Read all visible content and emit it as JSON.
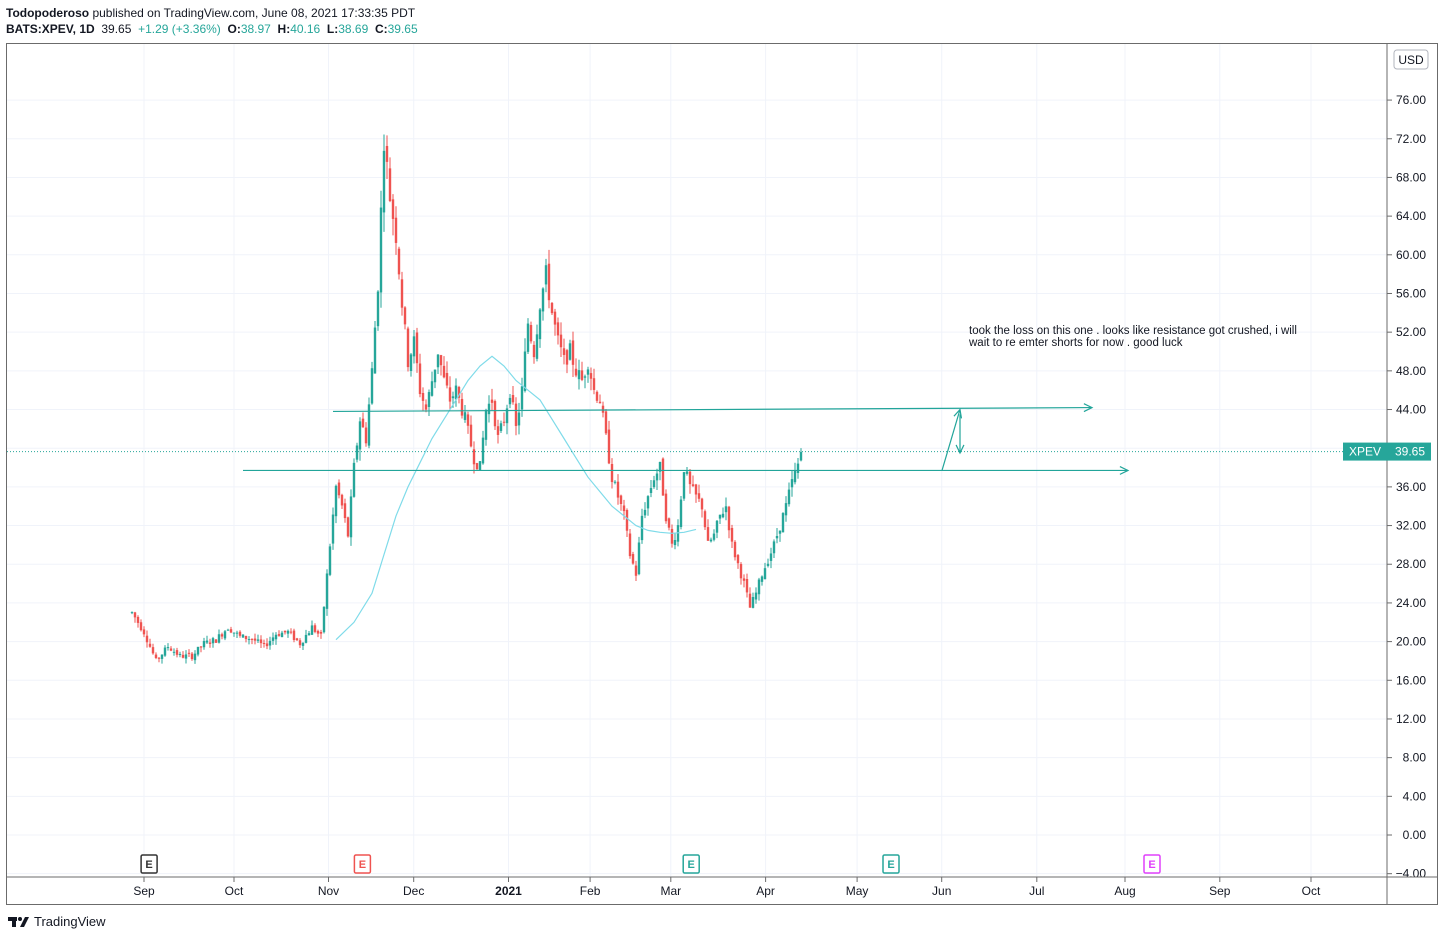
{
  "header": {
    "author": "Todopoderoso",
    "published_text": "published on TradingView.com, June 08, 2021 17:33:35 PDT",
    "symbol": "BATS:XPEV, 1D",
    "last": "39.65",
    "change": "+1.29 (+3.36%)",
    "o_label": "O:",
    "o_value": "38.97",
    "h_label": "H:",
    "h_value": "40.16",
    "l_label": "L:",
    "l_value": "38.69",
    "c_label": "C:",
    "c_value": "39.65"
  },
  "currency": "USD",
  "price_label": {
    "symbol": "XPEV",
    "value": "39.65"
  },
  "annotation": {
    "line1": "took the loss on this one . looks like resistance got crushed, i will",
    "line2": "wait to re emter shorts for now . good luck"
  },
  "brand": {
    "name": "TradingView"
  },
  "colors": {
    "up": "#26a69a",
    "down": "#ef5350",
    "ma": "#7fdbe9",
    "line": "#22a59a",
    "earnings_past": "#333333",
    "earnings_red": "#ef5350",
    "earnings_teal": "#26a69a",
    "earnings_future": "#e040fb"
  },
  "chart_data": {
    "type": "candlestick",
    "ylim": [
      -4,
      76
    ],
    "y_ticks": [
      "76.00",
      "72.00",
      "68.00",
      "64.00",
      "60.00",
      "56.00",
      "52.00",
      "48.00",
      "44.00",
      "40.00",
      "36.00",
      "32.00",
      "28.00",
      "24.00",
      "20.00",
      "16.00",
      "12.00",
      "8.00",
      "4.00",
      "0.00",
      "−4.00"
    ],
    "x_ticks": [
      {
        "label": "Sep",
        "t": 0.0,
        "bold": false
      },
      {
        "label": "Oct",
        "t": 30.0,
        "bold": false
      },
      {
        "label": "Nov",
        "t": 61.5,
        "bold": false
      },
      {
        "label": "Dec",
        "t": 89.9,
        "bold": false
      },
      {
        "label": "2021",
        "t": 121.5,
        "bold": true
      },
      {
        "label": "Feb",
        "t": 148.7,
        "bold": false
      },
      {
        "label": "Mar",
        "t": 175.6,
        "bold": false
      },
      {
        "label": "Apr",
        "t": 207.2,
        "bold": false
      },
      {
        "label": "May",
        "t": 237.7,
        "bold": false
      },
      {
        "label": "Jun",
        "t": 265.9,
        "bold": false
      },
      {
        "label": "Jul",
        "t": 297.6,
        "bold": false
      },
      {
        "label": "Aug",
        "t": 327.0,
        "bold": false
      },
      {
        "label": "Sep",
        "t": 358.6,
        "bold": false
      },
      {
        "label": "Oct",
        "t": 389.0,
        "bold": false
      }
    ],
    "earnings": [
      {
        "letter": "E",
        "t": 1.7,
        "kind": "past"
      },
      {
        "letter": "E",
        "t": 72.8,
        "kind": "red"
      },
      {
        "letter": "E",
        "t": 182.4,
        "kind": "teal"
      },
      {
        "letter": "E",
        "t": 249.0,
        "kind": "teal"
      },
      {
        "letter": "E",
        "t": 336.0,
        "kind": "future"
      }
    ],
    "candle_path": [
      {
        "t": -4,
        "p": 23
      },
      {
        "t": 0,
        "p": 21
      },
      {
        "t": 4,
        "p": 18
      },
      {
        "t": 8,
        "p": 19.5
      },
      {
        "t": 12,
        "p": 18.5
      },
      {
        "t": 16,
        "p": 18.5
      },
      {
        "t": 20,
        "p": 19.8
      },
      {
        "t": 24,
        "p": 20.2
      },
      {
        "t": 28,
        "p": 21.5
      },
      {
        "t": 32,
        "p": 20.5
      },
      {
        "t": 36,
        "p": 20.3
      },
      {
        "t": 40,
        "p": 19.5
      },
      {
        "t": 44,
        "p": 20.8
      },
      {
        "t": 48,
        "p": 21
      },
      {
        "t": 52,
        "p": 19.8
      },
      {
        "t": 56,
        "p": 21.5
      },
      {
        "t": 59,
        "p": 20.5
      },
      {
        "t": 62,
        "p": 30
      },
      {
        "t": 64,
        "p": 36
      },
      {
        "t": 66,
        "p": 34
      },
      {
        "t": 68,
        "p": 31
      },
      {
        "t": 70,
        "p": 38
      },
      {
        "t": 72,
        "p": 43
      },
      {
        "t": 74,
        "p": 41
      },
      {
        "t": 76,
        "p": 48
      },
      {
        "t": 78,
        "p": 57
      },
      {
        "t": 80,
        "p": 72
      },
      {
        "t": 82,
        "p": 66
      },
      {
        "t": 84,
        "p": 62
      },
      {
        "t": 86,
        "p": 55
      },
      {
        "t": 88,
        "p": 49
      },
      {
        "t": 90,
        "p": 51
      },
      {
        "t": 92,
        "p": 46
      },
      {
        "t": 94,
        "p": 44
      },
      {
        "t": 96,
        "p": 47
      },
      {
        "t": 98,
        "p": 50
      },
      {
        "t": 100,
        "p": 47
      },
      {
        "t": 102,
        "p": 45
      },
      {
        "t": 104,
        "p": 46
      },
      {
        "t": 107,
        "p": 43
      },
      {
        "t": 110,
        "p": 39
      },
      {
        "t": 112,
        "p": 38
      },
      {
        "t": 114,
        "p": 44
      },
      {
        "t": 116,
        "p": 45
      },
      {
        "t": 118,
        "p": 41
      },
      {
        "t": 120,
        "p": 43
      },
      {
        "t": 122,
        "p": 46
      },
      {
        "t": 124,
        "p": 42
      },
      {
        "t": 126,
        "p": 46
      },
      {
        "t": 128,
        "p": 53
      },
      {
        "t": 130,
        "p": 50
      },
      {
        "t": 132,
        "p": 55
      },
      {
        "t": 134,
        "p": 58
      },
      {
        "t": 136,
        "p": 54
      },
      {
        "t": 138,
        "p": 51
      },
      {
        "t": 140,
        "p": 49
      },
      {
        "t": 142,
        "p": 50
      },
      {
        "t": 144,
        "p": 48
      },
      {
        "t": 146,
        "p": 47
      },
      {
        "t": 148,
        "p": 49
      },
      {
        "t": 150,
        "p": 46
      },
      {
        "t": 152,
        "p": 45
      },
      {
        "t": 154,
        "p": 41
      },
      {
        "t": 156,
        "p": 37
      },
      {
        "t": 158,
        "p": 35
      },
      {
        "t": 160,
        "p": 33
      },
      {
        "t": 162,
        "p": 29
      },
      {
        "t": 164,
        "p": 27
      },
      {
        "t": 166,
        "p": 33
      },
      {
        "t": 168,
        "p": 35
      },
      {
        "t": 170,
        "p": 37
      },
      {
        "t": 172,
        "p": 38
      },
      {
        "t": 174,
        "p": 33
      },
      {
        "t": 176,
        "p": 30
      },
      {
        "t": 178,
        "p": 32
      },
      {
        "t": 180,
        "p": 38
      },
      {
        "t": 182,
        "p": 36
      },
      {
        "t": 184,
        "p": 35
      },
      {
        "t": 186,
        "p": 34
      },
      {
        "t": 188,
        "p": 30
      },
      {
        "t": 190,
        "p": 31
      },
      {
        "t": 192,
        "p": 33
      },
      {
        "t": 194,
        "p": 34
      },
      {
        "t": 196,
        "p": 30
      },
      {
        "t": 198,
        "p": 28
      },
      {
        "t": 200,
        "p": 26
      },
      {
        "t": 202,
        "p": 23.5
      },
      {
        "t": 204,
        "p": 25
      },
      {
        "t": 206,
        "p": 27
      },
      {
        "t": 208,
        "p": 28.5
      },
      {
        "t": 210,
        "p": 30
      },
      {
        "t": 212,
        "p": 32
      },
      {
        "t": 214,
        "p": 34
      },
      {
        "t": 216,
        "p": 36.5
      },
      {
        "t": 218,
        "p": 38.3
      },
      {
        "t": 219,
        "p": 39.65
      }
    ],
    "ma_series": [
      {
        "t": 64,
        "p": 20.2
      },
      {
        "t": 70,
        "p": 22
      },
      {
        "t": 76,
        "p": 25
      },
      {
        "t": 80,
        "p": 29
      },
      {
        "t": 84,
        "p": 33
      },
      {
        "t": 88,
        "p": 36
      },
      {
        "t": 92,
        "p": 38.5
      },
      {
        "t": 96,
        "p": 41
      },
      {
        "t": 100,
        "p": 43
      },
      {
        "t": 104,
        "p": 45
      },
      {
        "t": 108,
        "p": 47
      },
      {
        "t": 112,
        "p": 48.5
      },
      {
        "t": 116,
        "p": 49.5
      },
      {
        "t": 120,
        "p": 48.5
      },
      {
        "t": 124,
        "p": 47
      },
      {
        "t": 128,
        "p": 46
      },
      {
        "t": 132,
        "p": 45
      },
      {
        "t": 136,
        "p": 43
      },
      {
        "t": 140,
        "p": 41
      },
      {
        "t": 144,
        "p": 39
      },
      {
        "t": 148,
        "p": 37
      },
      {
        "t": 152,
        "p": 35.5
      },
      {
        "t": 156,
        "p": 34
      },
      {
        "t": 160,
        "p": 33
      },
      {
        "t": 164,
        "p": 32
      },
      {
        "t": 168,
        "p": 31.5
      },
      {
        "t": 172,
        "p": 31.3
      },
      {
        "t": 176,
        "p": 31.2
      },
      {
        "t": 180,
        "p": 31.3
      },
      {
        "t": 184,
        "p": 31.6
      }
    ],
    "resistance_line": {
      "t1": 63,
      "p1": 43.8,
      "t2": 316,
      "p2": 44.2
    },
    "support_line": {
      "t1": 33,
      "p1": 37.7,
      "t2": 328,
      "p2": 37.7
    },
    "arrow_up": {
      "t1": 266,
      "p1": 37.7,
      "t2": 272,
      "p2": 44
    },
    "arrow_down": {
      "t1": 272,
      "p1": 43.5,
      "t2": 272,
      "p2": 39.5
    },
    "last_price": 39.65
  }
}
